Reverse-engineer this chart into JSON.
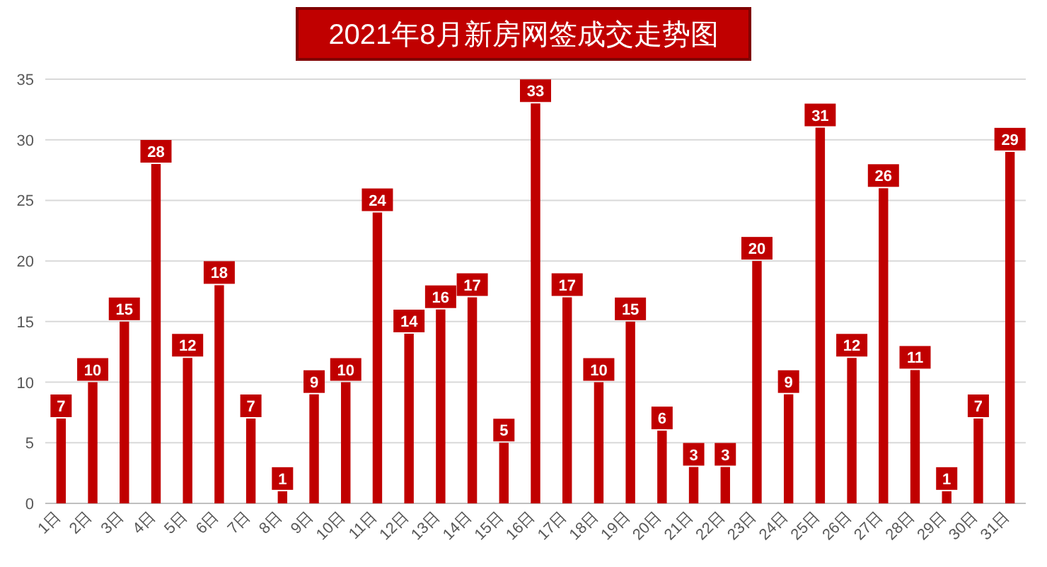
{
  "chart_data": {
    "type": "bar",
    "title": "2021年8月新房网签成交走势图",
    "categories": [
      "1日",
      "2日",
      "3日",
      "4日",
      "5日",
      "6日",
      "7日",
      "8日",
      "9日",
      "10日",
      "11日",
      "12日",
      "13日",
      "14日",
      "15日",
      "16日",
      "17日",
      "18日",
      "19日",
      "20日",
      "21日",
      "22日",
      "23日",
      "24日",
      "25日",
      "26日",
      "27日",
      "28日",
      "29日",
      "30日",
      "31日"
    ],
    "values": [
      7,
      10,
      15,
      28,
      12,
      18,
      7,
      1,
      9,
      10,
      24,
      14,
      16,
      17,
      5,
      33,
      17,
      10,
      15,
      6,
      3,
      3,
      20,
      9,
      31,
      12,
      26,
      11,
      1,
      7,
      29
    ],
    "color": "#c00000",
    "ylim": [
      0,
      35
    ],
    "yticks": [
      0,
      5,
      10,
      15,
      20,
      25,
      30,
      35
    ],
    "grid": "y",
    "data_labels": true
  }
}
